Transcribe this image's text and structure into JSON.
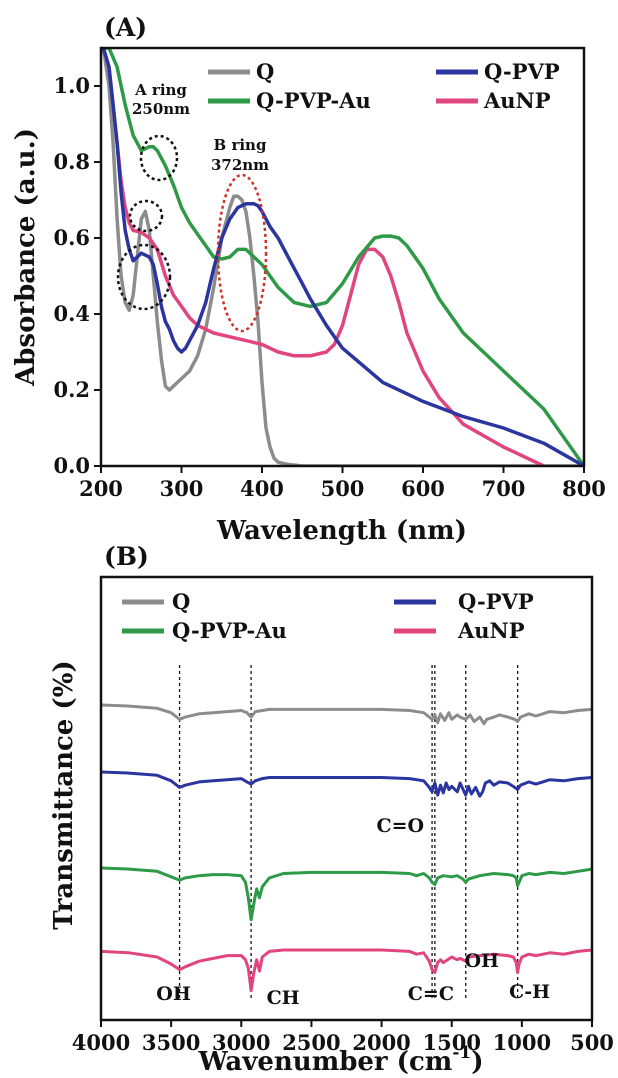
{
  "chart_data": [
    {
      "panel": "(A)",
      "type": "line",
      "xlabel": "Wavelength (nm)",
      "ylabel": "Absorbance (a.u.)",
      "xlim": [
        200,
        800
      ],
      "ylim": [
        0,
        1.1
      ],
      "xticks": [
        "200",
        "300",
        "400",
        "500",
        "600",
        "700",
        "800"
      ],
      "yticks": [
        "0.0",
        "0.2",
        "0.4",
        "0.6",
        "0.8",
        "1.0"
      ],
      "legend_placement": "top",
      "grid": false,
      "annotations": [
        {
          "text": [
            "A ring",
            "250nm"
          ],
          "x": 262,
          "y": 0.87
        },
        {
          "text": [
            "B ring",
            "372nm"
          ],
          "x": 385,
          "y": 0.82
        }
      ],
      "series": [
        {
          "name": "Q",
          "color": "#8c8c8c",
          "x": [
            203,
            210,
            215,
            220,
            225,
            230,
            235,
            240,
            245,
            250,
            255,
            260,
            265,
            270,
            275,
            280,
            285,
            290,
            300,
            310,
            320,
            330,
            340,
            350,
            360,
            365,
            370,
            375,
            380,
            385,
            390,
            395,
            400,
            405,
            410,
            415,
            420,
            430,
            450,
            500,
            600,
            700,
            800
          ],
          "y": [
            1.1,
            1.0,
            0.85,
            0.65,
            0.5,
            0.43,
            0.41,
            0.45,
            0.55,
            0.65,
            0.67,
            0.62,
            0.5,
            0.38,
            0.28,
            0.21,
            0.2,
            0.21,
            0.23,
            0.25,
            0.29,
            0.36,
            0.47,
            0.6,
            0.68,
            0.71,
            0.71,
            0.7,
            0.67,
            0.6,
            0.5,
            0.38,
            0.22,
            0.1,
            0.05,
            0.02,
            0.01,
            0.005,
            0,
            0,
            0,
            0,
            0
          ]
        },
        {
          "name": "Q-PVP",
          "color": "#2b35a0",
          "x": [
            203,
            210,
            215,
            220,
            225,
            230,
            235,
            240,
            245,
            250,
            255,
            260,
            265,
            270,
            275,
            280,
            285,
            290,
            295,
            300,
            305,
            310,
            320,
            330,
            340,
            350,
            360,
            370,
            380,
            390,
            395,
            400,
            410,
            420,
            430,
            440,
            450,
            460,
            480,
            500,
            550,
            600,
            650,
            700,
            750,
            800
          ],
          "y": [
            1.1,
            1.05,
            0.95,
            0.85,
            0.72,
            0.62,
            0.57,
            0.54,
            0.55,
            0.56,
            0.555,
            0.55,
            0.53,
            0.48,
            0.42,
            0.38,
            0.36,
            0.33,
            0.31,
            0.3,
            0.31,
            0.33,
            0.37,
            0.43,
            0.52,
            0.6,
            0.65,
            0.68,
            0.69,
            0.69,
            0.685,
            0.67,
            0.63,
            0.6,
            0.56,
            0.52,
            0.48,
            0.44,
            0.37,
            0.31,
            0.22,
            0.17,
            0.13,
            0.1,
            0.06,
            0.0
          ]
        },
        {
          "name": "Q-PVP-Au",
          "color": "#2e9a48",
          "x": [
            203,
            210,
            220,
            230,
            240,
            250,
            260,
            265,
            270,
            275,
            280,
            290,
            300,
            310,
            320,
            330,
            340,
            350,
            360,
            370,
            380,
            390,
            400,
            410,
            420,
            440,
            460,
            480,
            500,
            520,
            540,
            550,
            560,
            570,
            580,
            600,
            620,
            650,
            700,
            750,
            800
          ],
          "y": [
            1.1,
            1.1,
            1.05,
            0.95,
            0.87,
            0.83,
            0.84,
            0.84,
            0.83,
            0.81,
            0.79,
            0.74,
            0.68,
            0.64,
            0.61,
            0.58,
            0.55,
            0.545,
            0.55,
            0.57,
            0.57,
            0.55,
            0.53,
            0.5,
            0.47,
            0.43,
            0.42,
            0.43,
            0.48,
            0.55,
            0.6,
            0.605,
            0.605,
            0.6,
            0.58,
            0.52,
            0.44,
            0.35,
            0.25,
            0.15,
            0.0
          ]
        },
        {
          "name": "AuNP",
          "color": "#e0457e",
          "x": [
            203,
            210,
            215,
            220,
            225,
            230,
            235,
            240,
            250,
            260,
            270,
            280,
            290,
            300,
            310,
            320,
            330,
            340,
            350,
            360,
            380,
            400,
            420,
            440,
            460,
            480,
            490,
            500,
            510,
            520,
            530,
            540,
            550,
            560,
            570,
            580,
            600,
            620,
            650,
            700,
            750
          ],
          "y": [
            1.1,
            1.05,
            0.95,
            0.85,
            0.75,
            0.68,
            0.64,
            0.62,
            0.615,
            0.6,
            0.57,
            0.5,
            0.45,
            0.42,
            0.39,
            0.37,
            0.36,
            0.35,
            0.345,
            0.34,
            0.33,
            0.32,
            0.3,
            0.29,
            0.29,
            0.3,
            0.32,
            0.37,
            0.45,
            0.53,
            0.57,
            0.57,
            0.55,
            0.5,
            0.43,
            0.35,
            0.25,
            0.18,
            0.11,
            0.05,
            0.0
          ]
        }
      ]
    },
    {
      "panel": "(B)",
      "type": "line",
      "xlabel": "Wavenumber (cm",
      "xlabel_sup": "-1",
      "ylabel": "Transmittance (%)",
      "xlim": [
        4000,
        500
      ],
      "ylim": [
        0,
        100
      ],
      "xticks": [
        "4000",
        "3500",
        "3000",
        "2500",
        "2000",
        "1500",
        "1000",
        "500"
      ],
      "legend_placement": "top",
      "grid": false,
      "peaks": [
        {
          "label": "OH",
          "x": 3440,
          "label_position": "bottom"
        },
        {
          "label": "CH",
          "x": 2930,
          "label_position": "bottom"
        },
        {
          "label": "C=O",
          "x": 1640,
          "label_position": "middle"
        },
        {
          "label": "C=C",
          "x": 1620,
          "label_position": "bottom"
        },
        {
          "label": "OH",
          "x": 1400,
          "label_position": "bottom"
        },
        {
          "label": "C-H",
          "x": 1030,
          "label_position": "bottom"
        }
      ],
      "series": [
        {
          "name": "Q",
          "color": "#8c8c8c",
          "offset": 0,
          "x": [
            4000,
            3800,
            3600,
            3500,
            3440,
            3400,
            3300,
            3200,
            3100,
            3000,
            2960,
            2930,
            2900,
            2850,
            2800,
            2500,
            2000,
            1800,
            1700,
            1660,
            1640,
            1620,
            1600,
            1580,
            1550,
            1520,
            1500,
            1460,
            1440,
            1400,
            1370,
            1340,
            1300,
            1270,
            1250,
            1200,
            1160,
            1100,
            1050,
            1030,
            1010,
            950,
            900,
            800,
            700,
            600,
            500
          ],
          "y": [
            93,
            92,
            90,
            86,
            80,
            82,
            85,
            86,
            87,
            88,
            86,
            82,
            87,
            88,
            89,
            89,
            89,
            88,
            86,
            82,
            80,
            84,
            77,
            85,
            79,
            86,
            80,
            84,
            82,
            80,
            84,
            78,
            82,
            76,
            80,
            82,
            84,
            82,
            80,
            78,
            82,
            85,
            83,
            87,
            86,
            88,
            89
          ]
        },
        {
          "name": "Q-PVP",
          "color": "#2b35a0",
          "offset": 0,
          "x": [
            4000,
            3800,
            3600,
            3500,
            3440,
            3400,
            3300,
            3200,
            3100,
            3000,
            2960,
            2930,
            2900,
            2850,
            2800,
            2500,
            2000,
            1800,
            1700,
            1660,
            1640,
            1620,
            1600,
            1580,
            1560,
            1540,
            1520,
            1500,
            1460,
            1440,
            1400,
            1380,
            1360,
            1330,
            1300,
            1280,
            1260,
            1230,
            1200,
            1160,
            1100,
            1050,
            1030,
            1010,
            950,
            900,
            800,
            700,
            600,
            500
          ],
          "y": [
            76,
            75,
            73,
            68,
            62,
            64,
            67,
            68,
            69,
            70,
            67,
            65,
            68,
            70,
            71,
            71,
            71,
            70,
            68,
            62,
            58,
            66,
            55,
            64,
            57,
            66,
            60,
            63,
            58,
            66,
            55,
            63,
            56,
            62,
            54,
            58,
            66,
            68,
            64,
            67,
            66,
            62,
            60,
            64,
            67,
            65,
            69,
            68,
            70,
            71
          ]
        },
        {
          "name": "Q-PVP-Au",
          "color": "#2e9a48",
          "offset": 0,
          "x": [
            4000,
            3800,
            3600,
            3500,
            3440,
            3400,
            3300,
            3200,
            3100,
            3000,
            2970,
            2950,
            2930,
            2910,
            2890,
            2870,
            2850,
            2800,
            2700,
            2500,
            2000,
            1800,
            1750,
            1700,
            1660,
            1640,
            1620,
            1600,
            1560,
            1500,
            1460,
            1420,
            1400,
            1380,
            1300,
            1200,
            1100,
            1060,
            1040,
            1030,
            1020,
            1000,
            950,
            900,
            800,
            700,
            600,
            500
          ],
          "y": [
            57,
            56,
            54,
            49,
            46,
            48,
            50,
            51,
            51,
            50,
            44,
            30,
            10,
            25,
            38,
            30,
            40,
            48,
            52,
            53,
            53,
            52,
            50,
            52,
            48,
            44,
            42,
            48,
            50,
            49,
            50,
            47,
            44,
            47,
            50,
            52,
            51,
            50,
            48,
            41,
            44,
            50,
            52,
            51,
            53,
            52,
            54,
            56
          ]
        },
        {
          "name": "AuNP",
          "color": "#e0457e",
          "offset": 0,
          "x": [
            4000,
            3800,
            3600,
            3500,
            3440,
            3400,
            3300,
            3200,
            3100,
            3000,
            2970,
            2950,
            2930,
            2910,
            2890,
            2870,
            2850,
            2800,
            2700,
            2500,
            2000,
            1800,
            1750,
            1700,
            1660,
            1640,
            1620,
            1600,
            1580,
            1560,
            1500,
            1460,
            1440,
            1400,
            1380,
            1300,
            1200,
            1100,
            1060,
            1040,
            1030,
            1020,
            1000,
            950,
            900,
            800,
            700,
            600,
            500
          ],
          "y": [
            18,
            17,
            14,
            9,
            5,
            7,
            11,
            13,
            15,
            15,
            12,
            6,
            -10,
            3,
            12,
            4,
            14,
            18,
            19,
            19,
            19,
            18,
            16,
            17,
            11,
            5,
            3,
            10,
            12,
            10,
            14,
            12,
            13,
            11,
            14,
            15,
            16,
            15,
            14,
            10,
            3,
            9,
            14,
            16,
            15,
            17,
            16,
            18,
            19
          ]
        }
      ]
    }
  ]
}
